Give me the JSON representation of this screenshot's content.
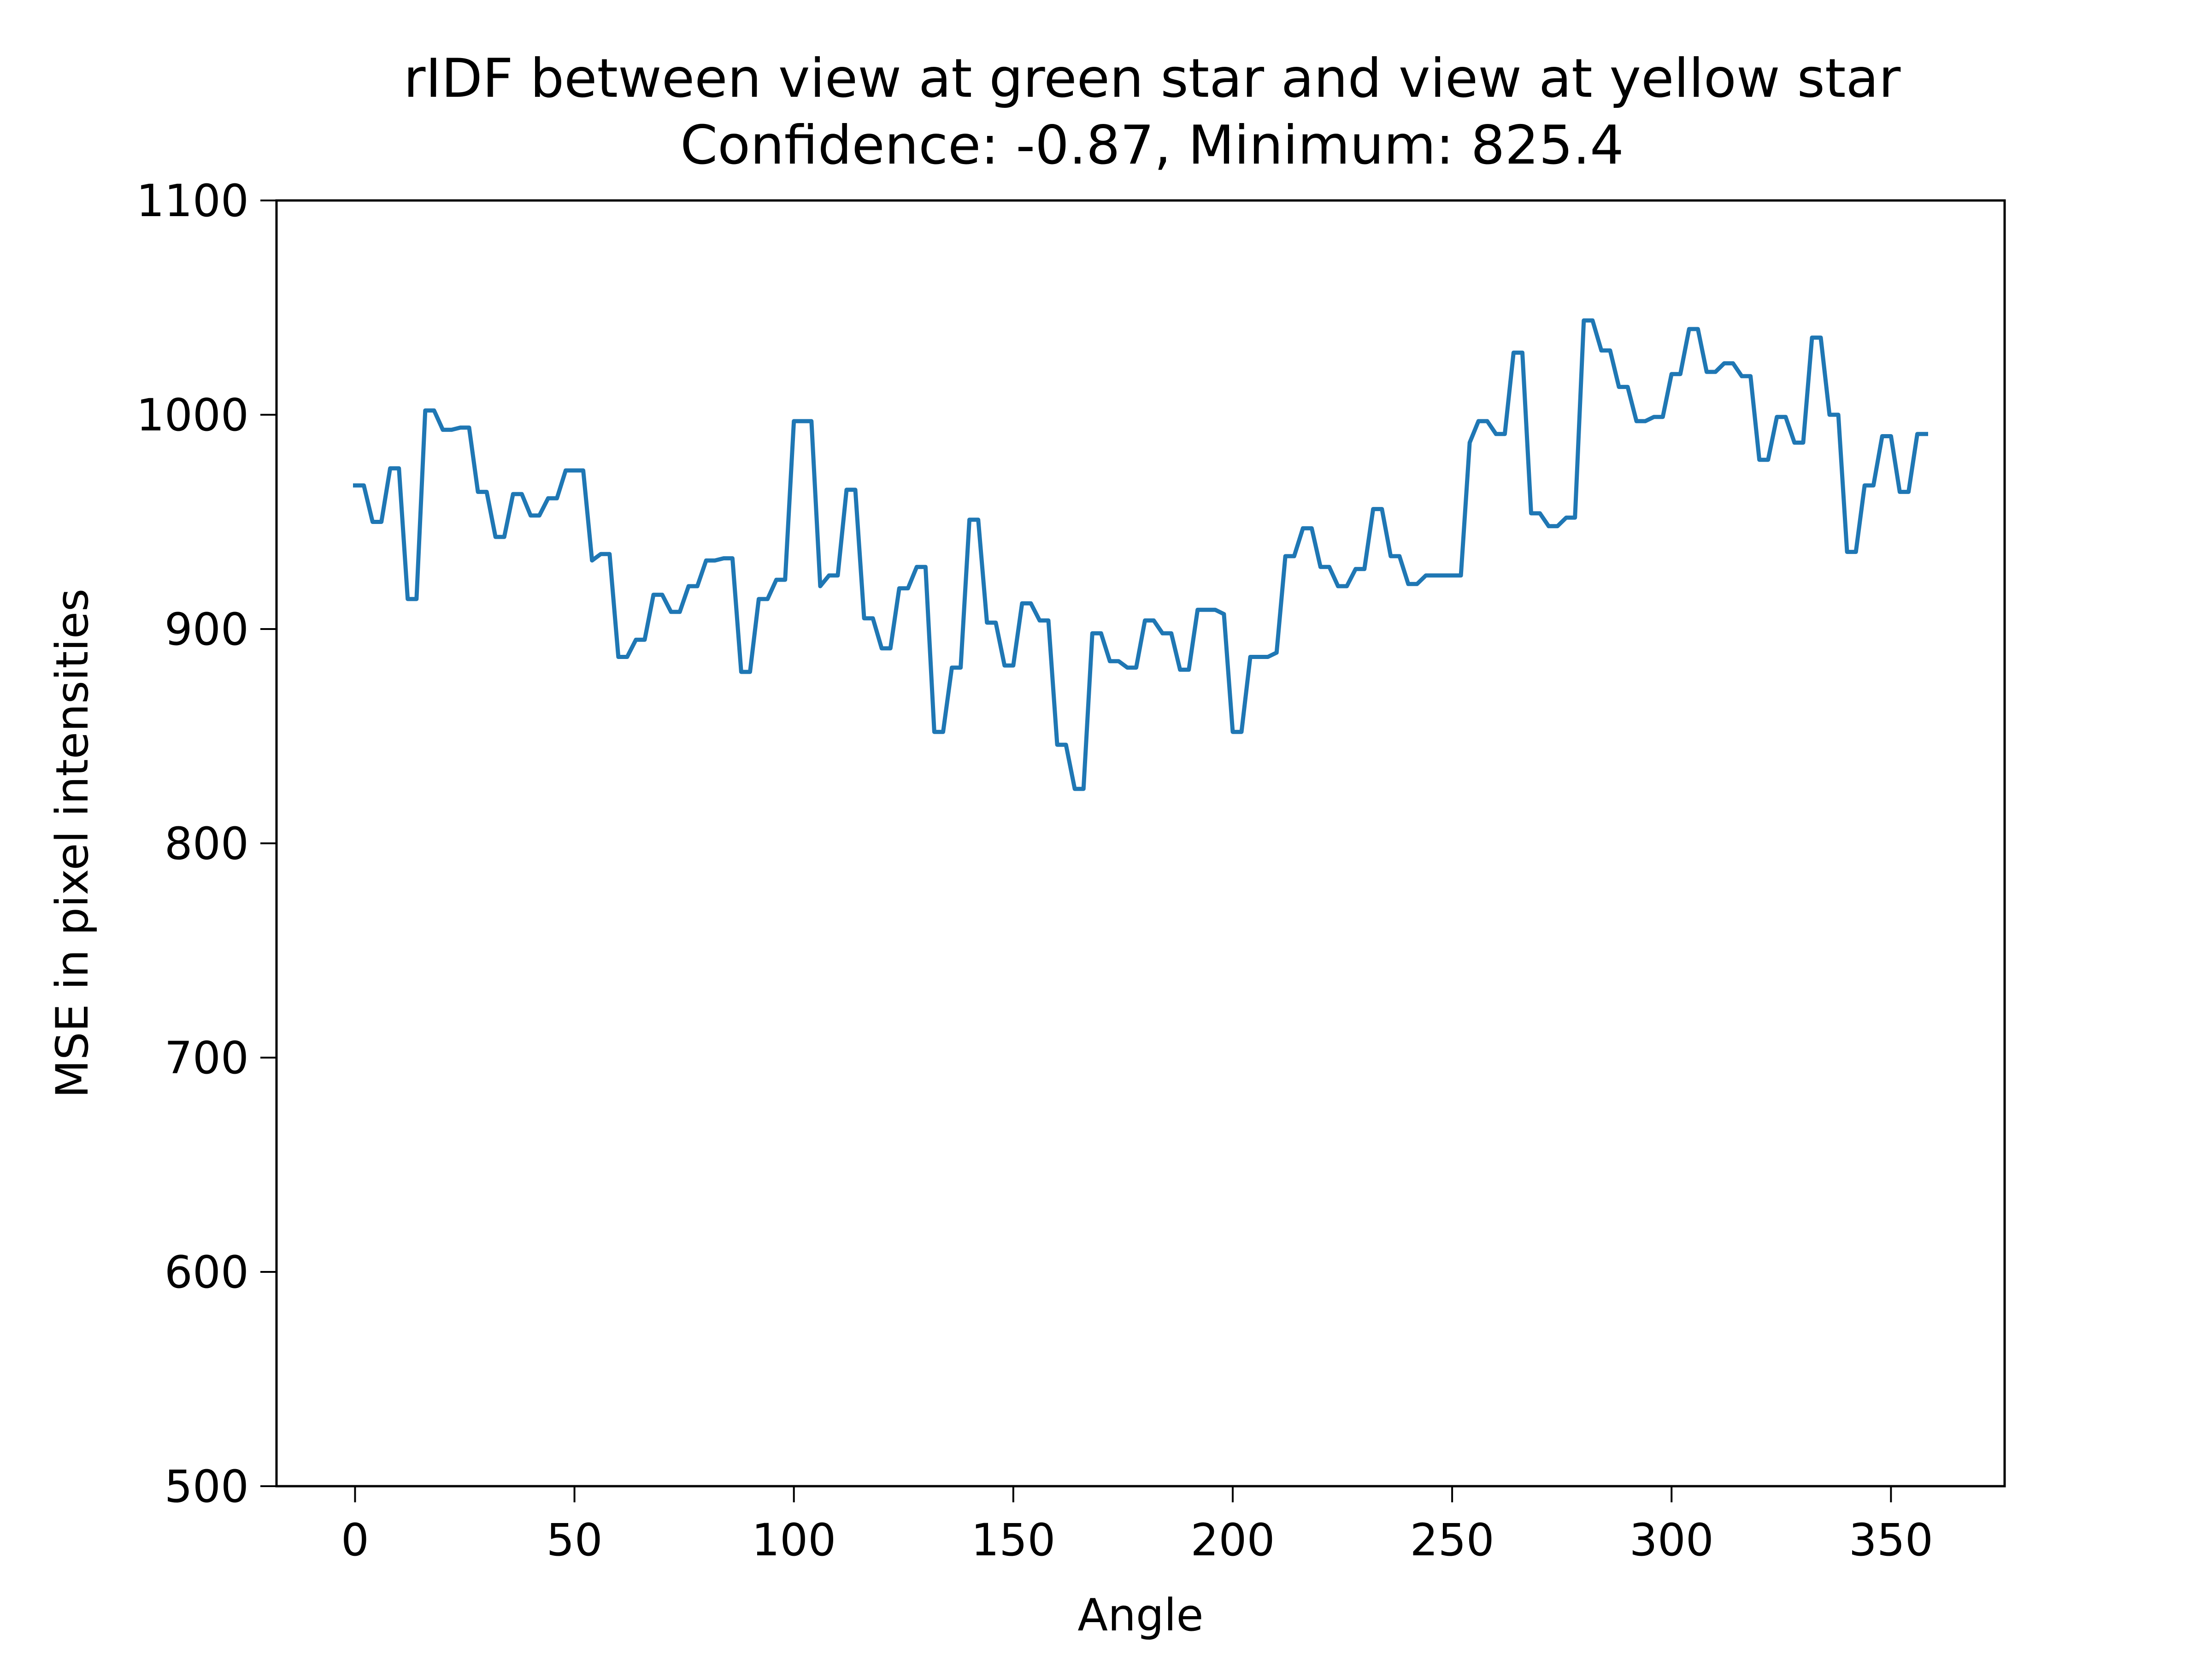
{
  "chart_data": {
    "type": "line",
    "title": "rIDF between view at green star and view at yellow star",
    "subtitle": "Confidence: -0.87, Minimum: 825.4",
    "xlabel": "Angle",
    "ylabel": "MSE in pixel intensities",
    "xlim": [
      -17.9,
      375.9
    ],
    "ylim": [
      500,
      1100
    ],
    "xticks": [
      0,
      50,
      100,
      150,
      200,
      250,
      300,
      350
    ],
    "yticks": [
      500,
      600,
      700,
      800,
      900,
      1000,
      1100
    ],
    "grid": false,
    "legend": "none",
    "series": [
      {
        "color": "#1f77b4",
        "x": [
          0,
          2,
          4,
          6,
          8,
          10,
          12,
          14,
          16,
          18,
          20,
          22,
          24,
          26,
          28,
          30,
          32,
          34,
          36,
          38,
          40,
          42,
          44,
          46,
          48,
          50,
          52,
          54,
          56,
          58,
          60,
          62,
          64,
          66,
          68,
          70,
          72,
          74,
          76,
          78,
          80,
          82,
          84,
          86,
          88,
          90,
          92,
          94,
          96,
          98,
          100,
          102,
          104,
          106,
          108,
          110,
          112,
          114,
          116,
          118,
          120,
          122,
          124,
          126,
          128,
          130,
          132,
          134,
          136,
          138,
          140,
          142,
          144,
          146,
          148,
          150,
          152,
          154,
          156,
          158,
          160,
          162,
          164,
          166,
          168,
          170,
          172,
          174,
          176,
          178,
          180,
          182,
          184,
          186,
          188,
          190,
          192,
          194,
          196,
          198,
          200,
          202,
          204,
          206,
          208,
          210,
          212,
          214,
          216,
          218,
          220,
          222,
          224,
          226,
          228,
          230,
          232,
          234,
          236,
          238,
          240,
          242,
          244,
          246,
          248,
          250,
          252,
          254,
          256,
          258,
          260,
          262,
          264,
          266,
          268,
          270,
          272,
          274,
          276,
          278,
          280,
          282,
          284,
          286,
          288,
          290,
          292,
          294,
          296,
          298,
          300,
          302,
          304,
          306,
          308,
          310,
          312,
          314,
          316,
          318,
          320,
          322,
          324,
          326,
          328,
          330,
          332,
          334,
          336,
          338,
          340,
          342,
          344,
          346,
          348,
          350,
          352,
          354,
          356,
          358
        ],
        "values": [
          967,
          967,
          950,
          950,
          975,
          975,
          914,
          914,
          1002,
          1002,
          993,
          993,
          994,
          994,
          964,
          964,
          943,
          943,
          963,
          963,
          953,
          953,
          961,
          961,
          974,
          974,
          974,
          932,
          935,
          935,
          887,
          887,
          895,
          895,
          916,
          916,
          908,
          908,
          920,
          920,
          932,
          932,
          933,
          933,
          880,
          880,
          914,
          914,
          923,
          923,
          997,
          997,
          997,
          920,
          925,
          925,
          965,
          965,
          905,
          905,
          891,
          891,
          919,
          919,
          929,
          929,
          852,
          852,
          882,
          882,
          951,
          951,
          903,
          903,
          883,
          883,
          912,
          912,
          904,
          904,
          846,
          846,
          825.4,
          825.4,
          898,
          898,
          885,
          885,
          882,
          882,
          904,
          904,
          898,
          898,
          881,
          881,
          909,
          909,
          909,
          907,
          852,
          852,
          887,
          887,
          887,
          889,
          934,
          934,
          947,
          947,
          929,
          929,
          920,
          920,
          928,
          928,
          956,
          956,
          934,
          934,
          921,
          921,
          925,
          925,
          925,
          925,
          925,
          987,
          997,
          997,
          991,
          991,
          1029,
          1029,
          954,
          954,
          948,
          948,
          952,
          952,
          1044,
          1044,
          1030,
          1030,
          1013,
          1013,
          997,
          997,
          999,
          999,
          1019,
          1019,
          1040,
          1040,
          1020,
          1020,
          1024,
          1024,
          1018,
          1018,
          979,
          979,
          999,
          999,
          987,
          987,
          1036,
          1036,
          1000,
          1000,
          936,
          936,
          967,
          967,
          990,
          990,
          964,
          964,
          991,
          991
        ]
      }
    ]
  }
}
